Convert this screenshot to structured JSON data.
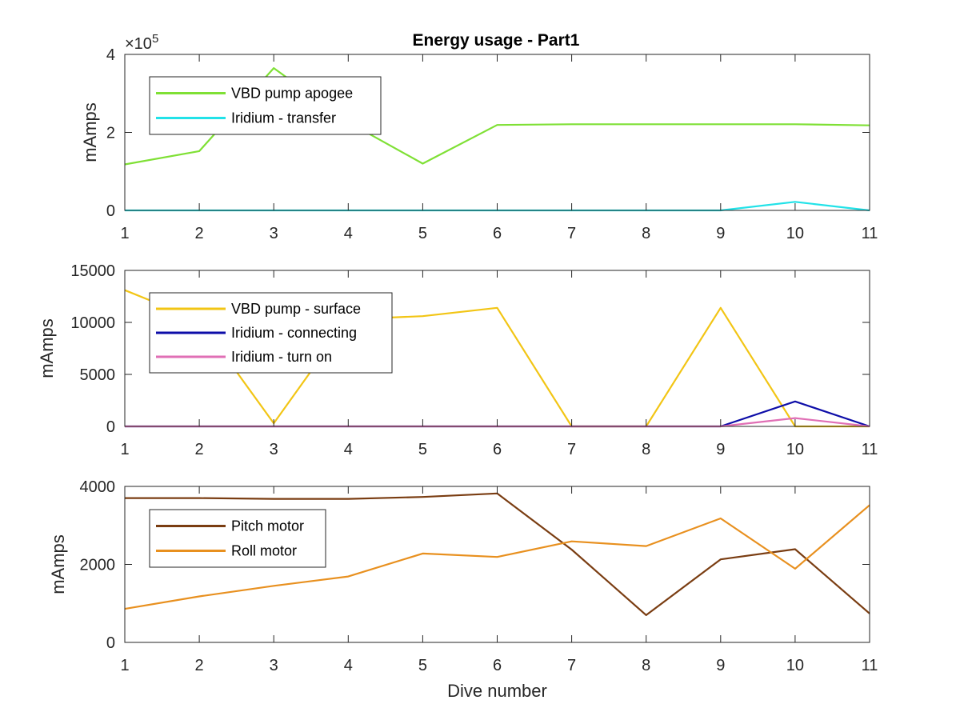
{
  "chart_data": [
    {
      "type": "line",
      "title": "Energy usage - Part1",
      "xlabel": "",
      "ylabel": "mAmps",
      "xlim": [
        1,
        11
      ],
      "ylim": [
        0,
        400000
      ],
      "yticks": [
        0,
        2,
        4
      ],
      "yexponent": "×10",
      "yexponent_power": "5",
      "x": [
        1,
        2,
        3,
        4,
        5,
        6,
        7,
        8,
        9,
        10,
        11
      ],
      "grid": false,
      "legend_position": "top-left",
      "series": [
        {
          "name": "VBD pump apogee",
          "color": "#7fe035",
          "values": [
            118000,
            152000,
            365000,
            226000,
            120000,
            219000,
            221000,
            221000,
            221000,
            221000,
            218000
          ]
        },
        {
          "name": "Iridium - transfer",
          "color": "#22e2e8",
          "values": [
            0,
            0,
            0,
            0,
            0,
            0,
            0,
            0,
            0,
            22000,
            0
          ]
        }
      ]
    },
    {
      "type": "line",
      "title": "",
      "xlabel": "",
      "ylabel": "mAmps",
      "xlim": [
        1,
        11
      ],
      "ylim": [
        0,
        15000
      ],
      "yticks": [
        0,
        5000,
        10000,
        15000
      ],
      "x": [
        1,
        2,
        3,
        4,
        5,
        6,
        7,
        8,
        9,
        10,
        11
      ],
      "grid": false,
      "legend_position": "top-left",
      "series": [
        {
          "name": "VBD pump - surface",
          "color": "#f2c515",
          "values": [
            13100,
            10200,
            300,
            10300,
            10600,
            11400,
            0,
            0,
            11400,
            0,
            0
          ]
        },
        {
          "name": "Iridium - connecting",
          "color": "#0d0da8",
          "values": [
            0,
            0,
            0,
            0,
            0,
            0,
            0,
            0,
            0,
            2400,
            0
          ]
        },
        {
          "name": "Iridium - turn on",
          "color": "#e06fb5",
          "values": [
            0,
            0,
            0,
            0,
            0,
            0,
            0,
            0,
            0,
            800,
            0
          ]
        }
      ]
    },
    {
      "type": "line",
      "title": "",
      "xlabel": "Dive number",
      "ylabel": "mAmps",
      "xlim": [
        1,
        11
      ],
      "ylim": [
        0,
        4000
      ],
      "yticks": [
        0,
        2000,
        4000
      ],
      "x": [
        1,
        2,
        3,
        4,
        5,
        6,
        7,
        8,
        9,
        10,
        11
      ],
      "grid": false,
      "legend_position": "top-left",
      "series": [
        {
          "name": "Pitch motor",
          "color": "#7a3d12",
          "values": [
            3700,
            3700,
            3680,
            3680,
            3730,
            3820,
            2380,
            700,
            2130,
            2390,
            740
          ]
        },
        {
          "name": "Roll motor",
          "color": "#e8901f",
          "values": [
            860,
            1180,
            1450,
            1690,
            2280,
            2190,
            2590,
            2470,
            3180,
            1890,
            3520
          ]
        }
      ]
    }
  ]
}
